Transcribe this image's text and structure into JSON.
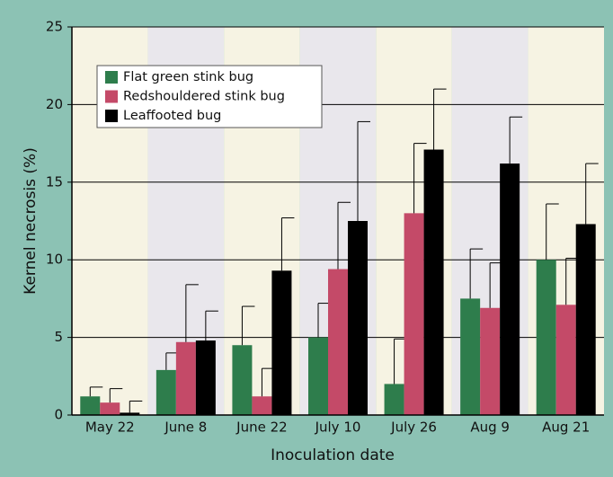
{
  "chart_data": {
    "type": "bar",
    "xlabel": "Inoculation date",
    "ylabel": "Kernel necrosis (%)",
    "categories": [
      "May 22",
      "June 8",
      "June 22",
      "July 10",
      "July 26",
      "Aug 9",
      "Aug 21"
    ],
    "series": [
      {
        "name": "Flat green stink bug",
        "color": "#2e7d4c",
        "values": [
          1.2,
          2.9,
          4.5,
          5.0,
          2.0,
          7.5,
          10.0
        ],
        "errors": [
          0.6,
          1.1,
          2.5,
          2.2,
          2.9,
          3.2,
          3.6
        ]
      },
      {
        "name": "Redshouldered stink bug",
        "color": "#c44a68",
        "values": [
          0.8,
          4.7,
          1.2,
          9.4,
          13.0,
          6.9,
          7.1
        ],
        "errors": [
          0.9,
          3.7,
          1.8,
          4.3,
          4.5,
          2.9,
          3.0
        ]
      },
      {
        "name": "Leaffooted bug",
        "color": "#000000",
        "values": [
          0.15,
          4.8,
          9.3,
          12.5,
          17.1,
          16.2,
          12.3
        ],
        "errors": [
          0.75,
          1.9,
          3.4,
          6.4,
          3.9,
          3.0,
          3.9
        ]
      }
    ],
    "ylim": [
      0,
      25
    ],
    "yticks": [
      0,
      5,
      10,
      15,
      20,
      25
    ],
    "grid": true,
    "legend": "upper left"
  }
}
